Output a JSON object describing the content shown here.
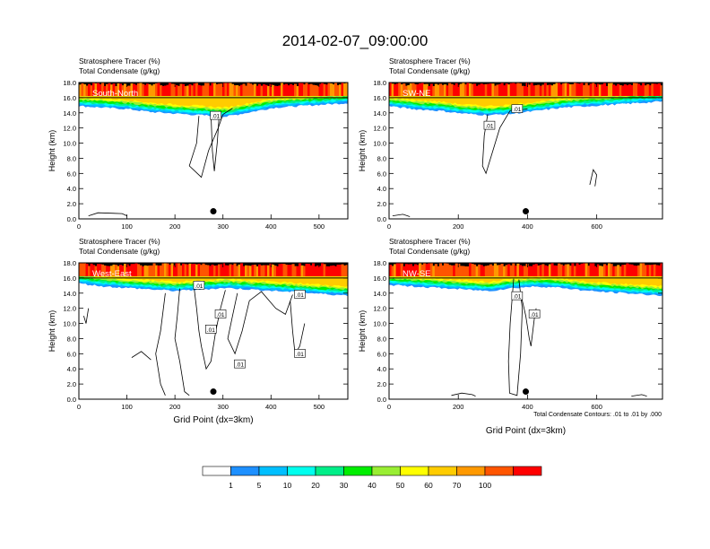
{
  "title": "2014-02-07_09:00:00",
  "colors": {
    "levels": [
      "#ffffff",
      "#1e90ff",
      "#00bfff",
      "#00ffee",
      "#00ee88",
      "#00ee00",
      "#99ee33",
      "#ffff00",
      "#ffcc00",
      "#ff9900",
      "#ff5500",
      "#ff0000"
    ]
  },
  "colorbar": {
    "labels": [
      "1",
      "5",
      "10",
      "20",
      "30",
      "40",
      "50",
      "60",
      "70",
      "100"
    ]
  },
  "footnote": "Total Condensate Contours: .01 to .01 by .000",
  "chart_data": [
    {
      "type": "heatmap",
      "panel_label": "South-North",
      "line1": "Stratosphere Tracer   (%)",
      "line2": "Total Condensate   (g/kg)",
      "ylabel": "Height (km)",
      "xlabel": "",
      "xlim": [
        0,
        560
      ],
      "ylim": [
        0,
        18
      ],
      "xticks": [
        "0",
        "100",
        "200",
        "300",
        "400",
        "500"
      ],
      "yticks": [
        "0.0",
        "2.0",
        "4.0",
        "6.0",
        "8.0",
        "10.0",
        "12.0",
        "14.0",
        "16.0",
        "18.0"
      ],
      "tracer_front_km": [
        15.0,
        14.8,
        14.6,
        14.2,
        14.0,
        13.8,
        13.6,
        14.2,
        14.8,
        15.0,
        15.2,
        15.4
      ],
      "marker": {
        "x": 280,
        "y": 1.0
      },
      "contour_labels": [
        {
          "text": ".01",
          "x": 285,
          "y": 13.6
        }
      ]
    },
    {
      "type": "heatmap",
      "panel_label": "SW-NE",
      "line1": "Stratosphere Tracer   (%)",
      "line2": "Total Condensate   (g/kg)",
      "ylabel": "Height (km)",
      "xlabel": "",
      "xlim": [
        0,
        790
      ],
      "ylim": [
        0,
        18
      ],
      "xticks": [
        "0",
        "200",
        "400",
        "600"
      ],
      "yticks": [
        "0.0",
        "2.0",
        "4.0",
        "6.0",
        "8.0",
        "10.0",
        "12.0",
        "14.0",
        "16.0",
        "18.0"
      ],
      "tracer_front_km": [
        15.0,
        14.6,
        14.4,
        14.0,
        13.8,
        14.0,
        14.4,
        14.8,
        15.0,
        15.2,
        15.4,
        15.6
      ],
      "marker": {
        "x": 395,
        "y": 1.0
      },
      "contour_labels": [
        {
          "text": ".01",
          "x": 290,
          "y": 12.3
        },
        {
          "text": ".01",
          "x": 370,
          "y": 14.5
        }
      ]
    },
    {
      "type": "heatmap",
      "panel_label": "West-East",
      "line1": "Stratosphere Tracer   (%)",
      "line2": "Total Condensate   (g/kg)",
      "ylabel": "Height (km)",
      "xlabel": "Grid Point (dx=3km)",
      "xlim": [
        0,
        560
      ],
      "ylim": [
        0,
        18
      ],
      "xticks": [
        "0",
        "100",
        "200",
        "300",
        "400",
        "500"
      ],
      "yticks": [
        "0.0",
        "2.0",
        "4.0",
        "6.0",
        "8.0",
        "10.0",
        "12.0",
        "14.0",
        "16.0",
        "18.0"
      ],
      "tracer_front_km": [
        15.4,
        15.0,
        14.8,
        14.6,
        14.4,
        14.6,
        14.8,
        14.6,
        14.4,
        14.2,
        14.0,
        13.8
      ],
      "marker": {
        "x": 280,
        "y": 1.0
      },
      "contour_labels": [
        {
          "text": ".01",
          "x": 250,
          "y": 15.0
        },
        {
          "text": ".01",
          "x": 295,
          "y": 11.2
        },
        {
          "text": ".01",
          "x": 275,
          "y": 9.2
        },
        {
          "text": ".01",
          "x": 335,
          "y": 4.6
        },
        {
          "text": ".01",
          "x": 460,
          "y": 6.0
        },
        {
          "text": ".01",
          "x": 460,
          "y": 13.8
        }
      ]
    },
    {
      "type": "heatmap",
      "panel_label": "NW-SE",
      "line1": "Stratosphere Tracer   (%)",
      "line2": "Total Condensate   (g/kg)",
      "ylabel": "Height (km)",
      "xlabel": "Grid Point (dx=3km)",
      "xlim": [
        0,
        790
      ],
      "ylim": [
        0,
        18
      ],
      "xticks": [
        "0",
        "200",
        "400",
        "600"
      ],
      "yticks": [
        "0.0",
        "2.0",
        "4.0",
        "6.0",
        "8.0",
        "10.0",
        "12.0",
        "14.0",
        "16.0",
        "18.0"
      ],
      "tracer_front_km": [
        15.2,
        15.0,
        14.8,
        14.6,
        14.4,
        14.8,
        15.0,
        14.8,
        14.4,
        14.2,
        14.0,
        13.8
      ],
      "marker": {
        "x": 395,
        "y": 1.0
      },
      "contour_labels": [
        {
          "text": ".01",
          "x": 370,
          "y": 13.6
        },
        {
          "text": ".01",
          "x": 420,
          "y": 11.2
        }
      ]
    }
  ]
}
